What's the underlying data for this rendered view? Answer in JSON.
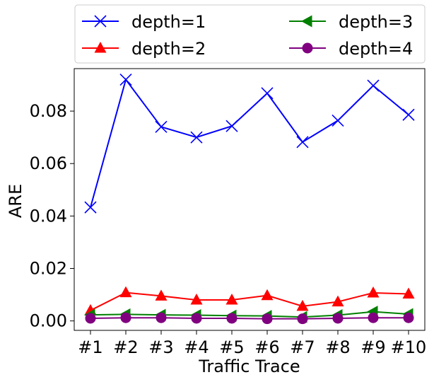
{
  "chart_data": {
    "type": "line",
    "xlabel": "Traffic Trace",
    "ylabel": "ARE",
    "categories": [
      "#1",
      "#2",
      "#3",
      "#4",
      "#5",
      "#6",
      "#7",
      "#8",
      "#9",
      "#10"
    ],
    "ylim": [
      -0.0036,
      0.0962
    ],
    "yticks": [
      0.0,
      0.02,
      0.04,
      0.06,
      0.08
    ],
    "ytick_labels": [
      "0.00",
      "0.02",
      "0.04",
      "0.06",
      "0.08"
    ],
    "grid": false,
    "legend_placement": "above plot, two columns",
    "series": [
      {
        "name": "depth=1",
        "color": "#0000ff",
        "marker": "x",
        "values": [
          0.0433,
          0.092,
          0.074,
          0.07,
          0.0743,
          0.0868,
          0.0682,
          0.0764,
          0.0897,
          0.0786
        ]
      },
      {
        "name": "depth=2",
        "color": "#ff0000",
        "marker": "triangle-up",
        "values": [
          0.004,
          0.0108,
          0.0095,
          0.008,
          0.008,
          0.0097,
          0.0056,
          0.0073,
          0.0107,
          0.0103
        ]
      },
      {
        "name": "depth=3",
        "color": "#008000",
        "marker": "triangle-left",
        "values": [
          0.0023,
          0.0025,
          0.0023,
          0.0022,
          0.002,
          0.0019,
          0.0015,
          0.0022,
          0.0035,
          0.0026
        ]
      },
      {
        "name": "depth=4",
        "color": "#800080",
        "marker": "circle",
        "values": [
          0.001,
          0.0012,
          0.0012,
          0.001,
          0.001,
          0.0008,
          0.0008,
          0.001,
          0.0012,
          0.0012
        ]
      }
    ]
  }
}
